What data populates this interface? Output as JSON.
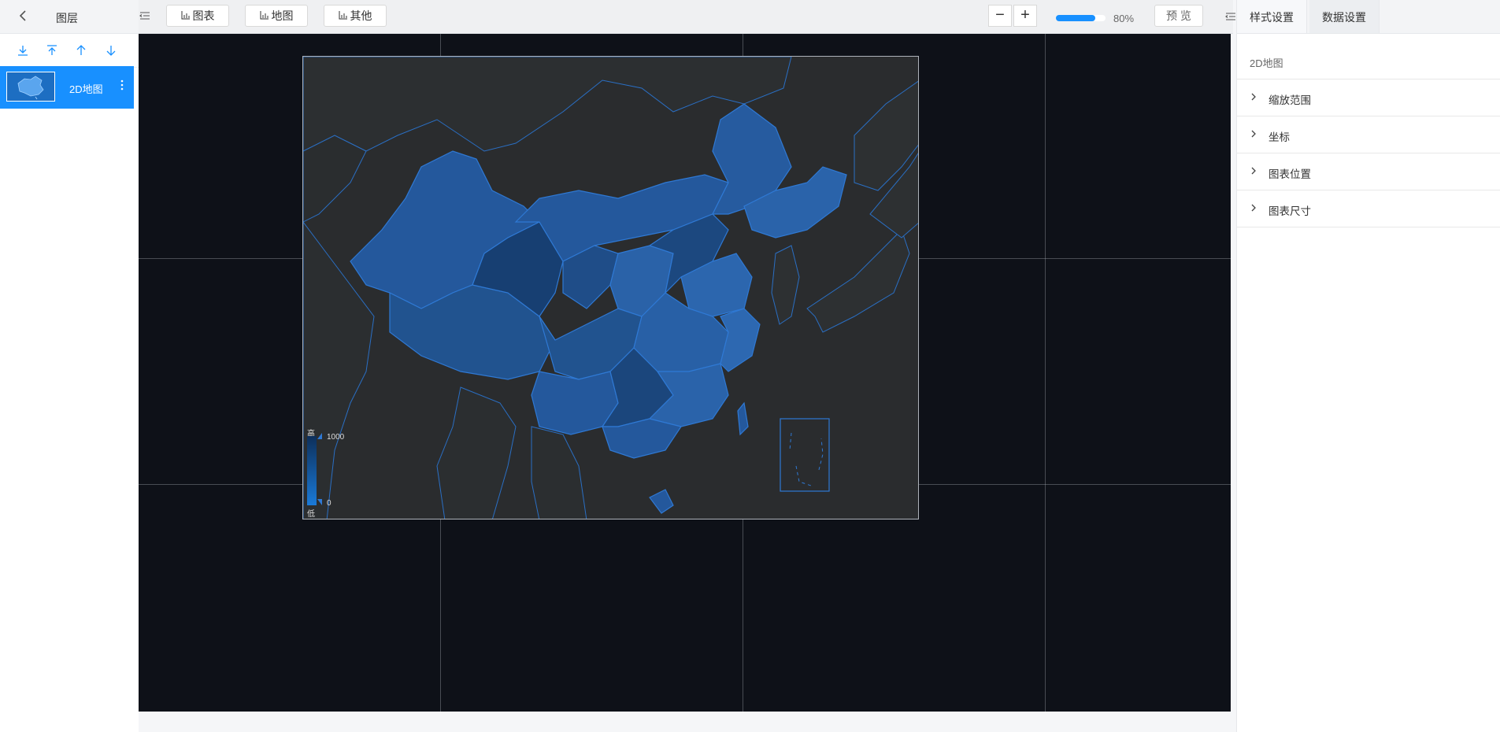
{
  "layers_panel": {
    "title": "图层",
    "back_icon": "chevron-left-icon",
    "tools": [
      "move-to-bottom-icon",
      "move-to-top-icon",
      "move-up-icon",
      "move-down-icon"
    ],
    "items": [
      {
        "name": "2D地图",
        "selected": true
      }
    ]
  },
  "toolbar": {
    "buttons": [
      "图表",
      "地图",
      "其他"
    ],
    "zoom_out": "−",
    "zoom_in": "+",
    "zoom_level_percent": 80,
    "zoom_label": "80%",
    "preview_label": "预 览"
  },
  "map_chart": {
    "legend_high_label": "高",
    "legend_low_label": "低",
    "legend_max": "1000",
    "legend_min": "0",
    "colors": {
      "canvas_bg": "#0e1118",
      "land": "#2a2c2e",
      "region_fill": "#24569a",
      "region_stroke": "#2f79d4",
      "accent": "#1890ff"
    }
  },
  "settings_panel": {
    "tabs": [
      "样式设置",
      "数据设置"
    ],
    "active_tab": "样式设置",
    "section_title": "2D地图",
    "rows": [
      "缩放范围",
      "坐标",
      "图表位置",
      "图表尺寸"
    ]
  }
}
